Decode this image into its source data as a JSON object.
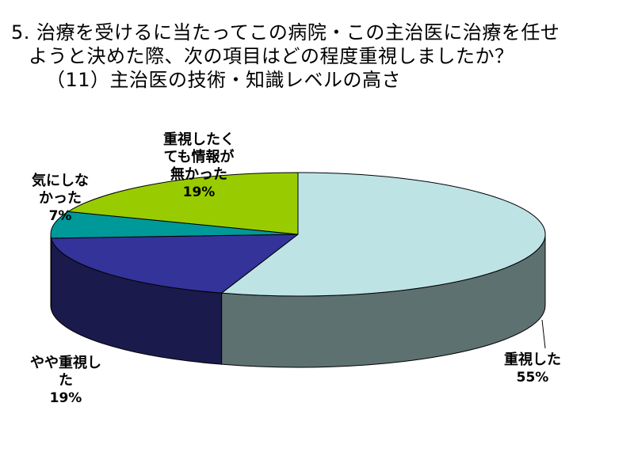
{
  "title": {
    "line1": "5. 治療を受けるに当たってこの病院・この主治医に治療を任せ",
    "line2": "ようと決めた際、次の項目はどの程度重視しましたか？",
    "line3": "（11）主治医の技術・知識レベルの高さ"
  },
  "chart_data": {
    "type": "pie",
    "style": "3d",
    "start_angle": "12 o'clock",
    "direction": "clockwise",
    "slices": [
      {
        "label": "重視した",
        "label_lines": [
          "重視した"
        ],
        "value": 55,
        "display": "55%",
        "color": "#BDE3E5",
        "side_color": "#5E7171"
      },
      {
        "label": "やや重視した",
        "label_lines": [
          "やや重視し",
          "た"
        ],
        "value": 19,
        "display": "19%",
        "color": "#333399",
        "side_color": "#1A1A4C"
      },
      {
        "label": "気にしなかった",
        "label_lines": [
          "気にしな",
          "かった"
        ],
        "value": 7,
        "display": "7%",
        "color": "#009999",
        "side_color": "#004C4C"
      },
      {
        "label": "重視したくても情報が無かった",
        "label_lines": [
          "重視したく",
          "ても情報が",
          "無かった"
        ],
        "value": 19,
        "display": "19%",
        "color": "#99CC00",
        "side_color": "#4C6600"
      }
    ]
  }
}
